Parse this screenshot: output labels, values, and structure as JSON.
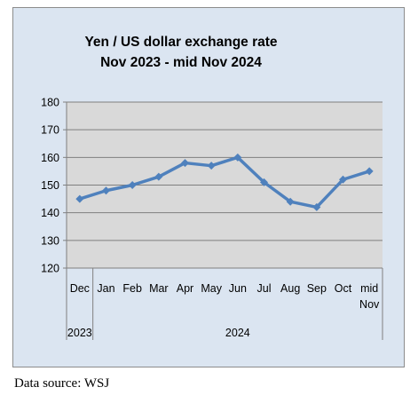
{
  "chart_data": {
    "type": "line",
    "title": [
      "Yen / US dollar exchange rate",
      "Nov 2023  -  mid Nov 2024"
    ],
    "categories": [
      "Dec",
      "Jan",
      "Feb",
      "Mar",
      "Apr",
      "May",
      "Jun",
      "Jul",
      "Aug",
      "Sep",
      "Oct",
      "mid Nov"
    ],
    "category_display": [
      [
        "Dec"
      ],
      [
        "Jan"
      ],
      [
        "Feb"
      ],
      [
        "Mar"
      ],
      [
        "Apr"
      ],
      [
        "May"
      ],
      [
        "Jun"
      ],
      [
        "Jul"
      ],
      [
        "Aug"
      ],
      [
        "Sep"
      ],
      [
        "Oct"
      ],
      [
        "mid",
        "Nov"
      ]
    ],
    "year_groups": [
      {
        "label": "2023",
        "start": 0,
        "end": 0
      },
      {
        "label": "2024",
        "start": 1,
        "end": 11
      }
    ],
    "series": [
      {
        "values": [
          145,
          148,
          150,
          153,
          158,
          157,
          160,
          151,
          144,
          142,
          152,
          155
        ]
      }
    ],
    "ylim": [
      120,
      180
    ],
    "yticks": [
      "120",
      "130",
      "140",
      "150",
      "160",
      "170",
      "180"
    ],
    "grid": true,
    "line_color": "#4f81bd",
    "plot_background": "#d9d9d9",
    "chart_background": "#dbe5f1",
    "gridline_color": "#7f7f7f"
  },
  "source_note": "Data source: WSJ"
}
